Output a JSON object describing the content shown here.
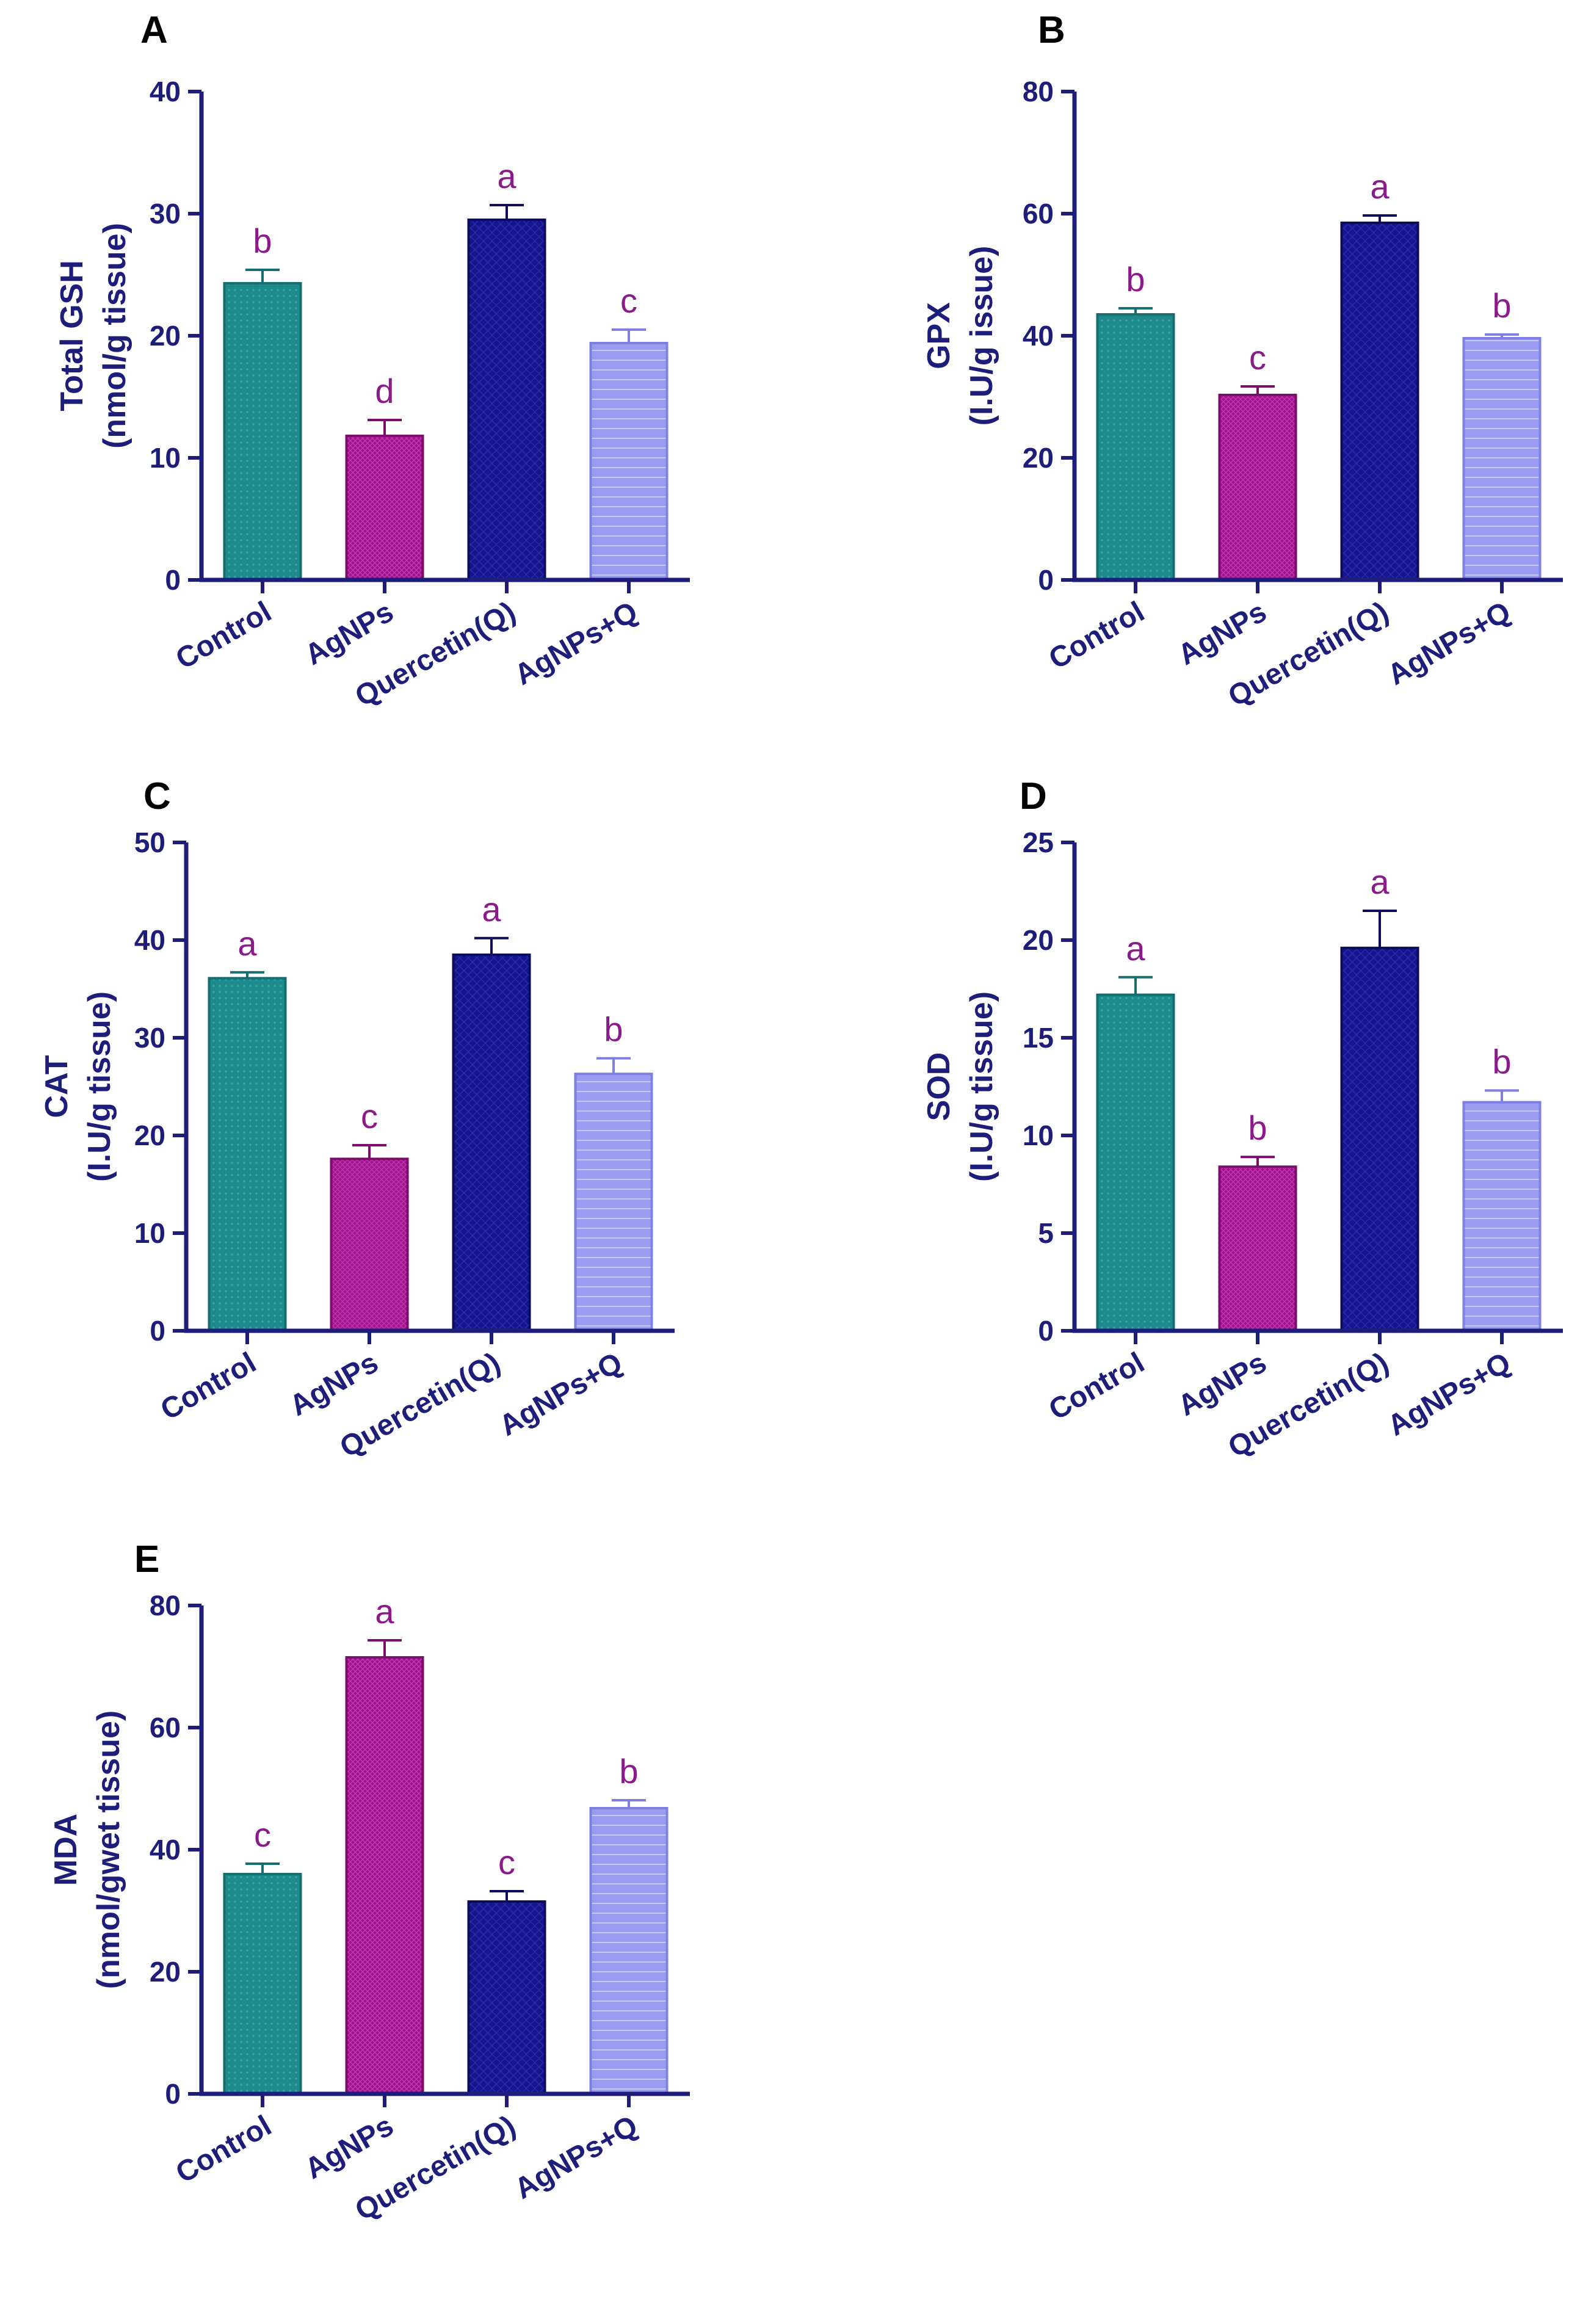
{
  "colors": {
    "axis": "#1d1d7a",
    "sig": "#8b1a8b",
    "bars": [
      "#1f8a8c",
      "#a3128f",
      "#15158c",
      "#9a9cf2"
    ],
    "bar_edges": [
      "#156e70",
      "#7c0d6e",
      "#0c0c5c",
      "#7d80e2"
    ]
  },
  "chart_data": [
    {
      "type": "bar",
      "panel": "A",
      "ylabel_lines": [
        "Total GSH",
        "(nmol/g tissue)"
      ],
      "categories": [
        "Control",
        "AgNPs",
        "Quercetin(Q)",
        "AgNPs+Q"
      ],
      "values": [
        24.3,
        11.8,
        29.5,
        19.4
      ],
      "errors": [
        1.1,
        1.3,
        1.2,
        1.1
      ],
      "sig": [
        "b",
        "d",
        "a",
        "c"
      ],
      "ylim": [
        0,
        40
      ],
      "yticks": [
        0,
        10,
        20,
        30,
        40
      ]
    },
    {
      "type": "bar",
      "panel": "B",
      "ylabel_lines": [
        "GPX",
        "(I.U/g issue)"
      ],
      "categories": [
        "Control",
        "AgNPs",
        "Quercetin(Q)",
        "AgNPs+Q"
      ],
      "values": [
        43.5,
        30.3,
        58.5,
        39.6
      ],
      "errors": [
        1.0,
        1.4,
        1.2,
        0.6
      ],
      "sig": [
        "b",
        "c",
        "a",
        "b"
      ],
      "ylim": [
        0,
        80
      ],
      "yticks": [
        0,
        20,
        40,
        60,
        80
      ]
    },
    {
      "type": "bar",
      "panel": "C",
      "ylabel_lines": [
        "CAT",
        "(I.U/g tissue)"
      ],
      "categories": [
        "Control",
        "AgNPs",
        "Quercetin(Q)",
        "AgNPs+Q"
      ],
      "values": [
        36.1,
        17.6,
        38.5,
        26.3
      ],
      "errors": [
        0.6,
        1.4,
        1.7,
        1.6
      ],
      "sig": [
        "a",
        "c",
        "a",
        "b"
      ],
      "ylim": [
        0,
        50
      ],
      "yticks": [
        0,
        10,
        20,
        30,
        40,
        50
      ]
    },
    {
      "type": "bar",
      "panel": "D",
      "ylabel_lines": [
        "SOD",
        "(I.U/g tissue)"
      ],
      "categories": [
        "Control",
        "AgNPs",
        "Quercetin(Q)",
        "AgNPs+Q"
      ],
      "values": [
        17.2,
        8.4,
        19.6,
        11.7
      ],
      "errors": [
        0.9,
        0.5,
        1.9,
        0.6
      ],
      "sig": [
        "a",
        "b",
        "a",
        "b"
      ],
      "ylim": [
        0,
        25
      ],
      "yticks": [
        0,
        5,
        10,
        15,
        20,
        25
      ]
    },
    {
      "type": "bar",
      "panel": "E",
      "ylabel_lines": [
        "MDA",
        "(nmol/gwet tissue)"
      ],
      "categories": [
        "Control",
        "AgNPs",
        "Quercetin(Q)",
        "AgNPs+Q"
      ],
      "values": [
        36.0,
        71.5,
        31.5,
        46.8
      ],
      "errors": [
        1.7,
        2.8,
        1.7,
        1.3
      ],
      "sig": [
        "c",
        "a",
        "c",
        "b"
      ],
      "ylim": [
        0,
        80
      ],
      "yticks": [
        0,
        20,
        40,
        60,
        80
      ]
    }
  ]
}
